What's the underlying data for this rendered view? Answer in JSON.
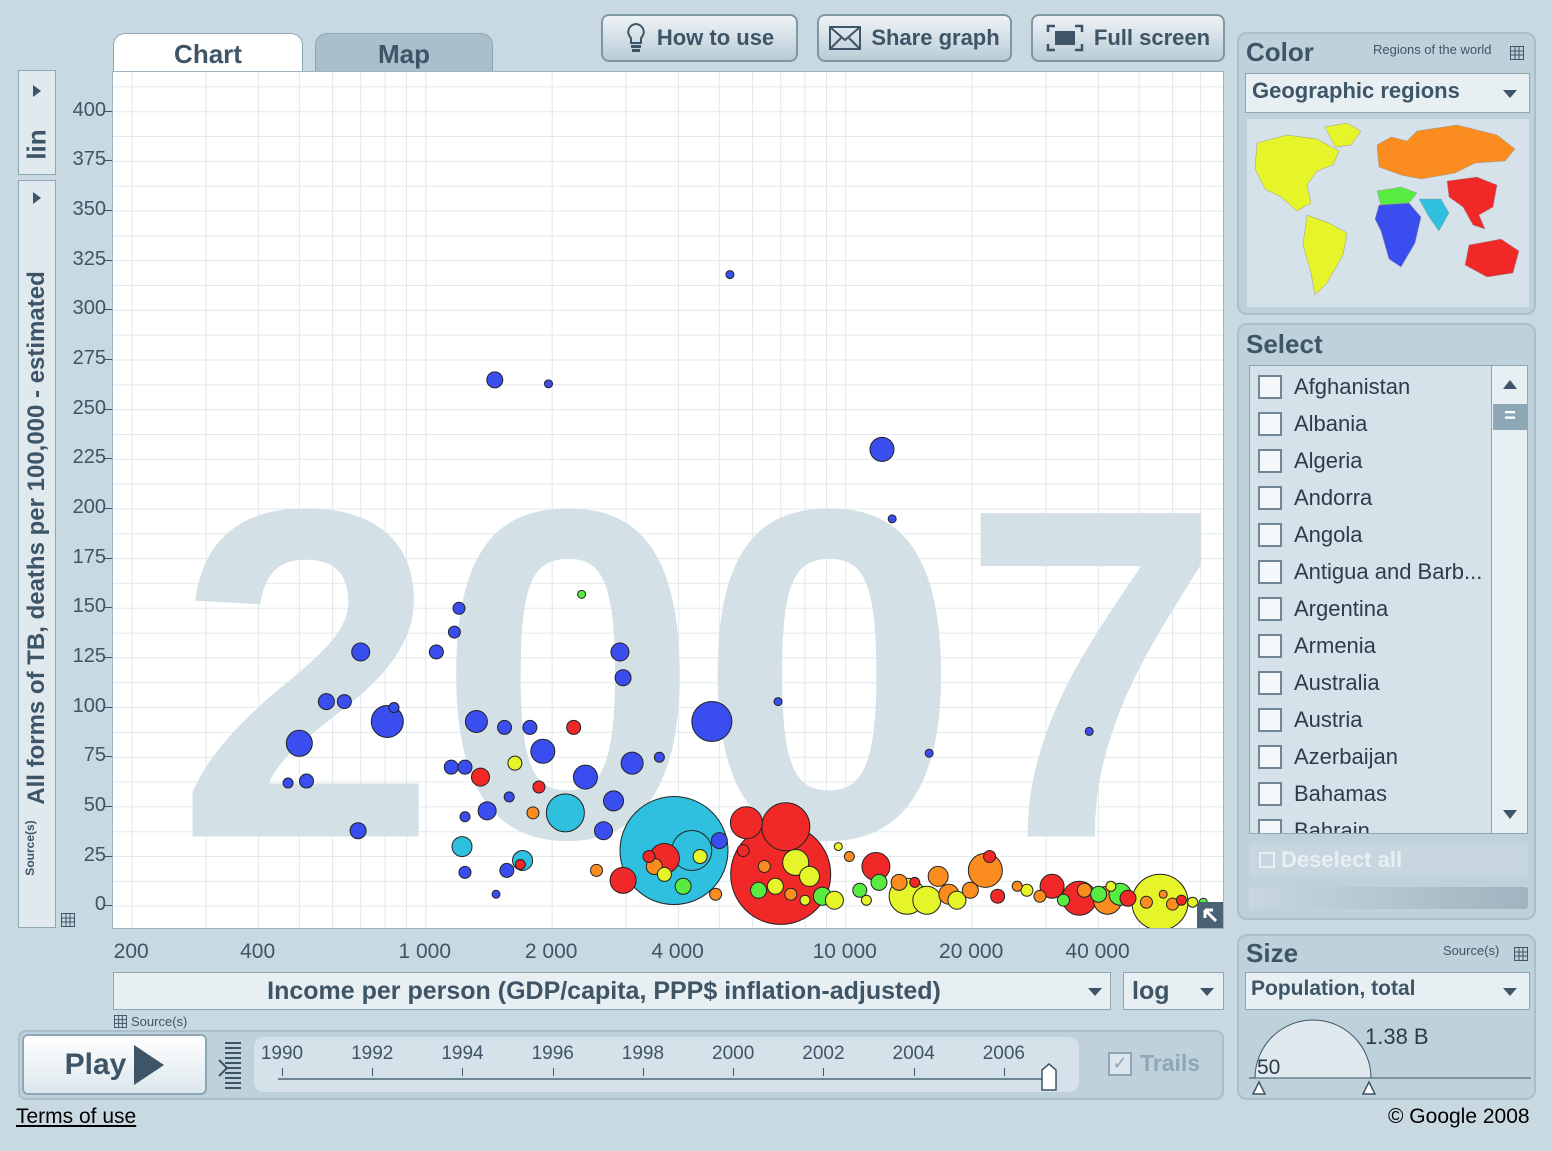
{
  "tabs": [
    {
      "label": "Chart"
    },
    {
      "label": "Map"
    }
  ],
  "toolbar": {
    "how_to_use": "How to use",
    "share_graph": "Share graph",
    "full_screen": "Full screen"
  },
  "year_label": "2007",
  "yaxis": {
    "scale": "lin",
    "label": "All forms of TB, deaths per 100,000 - estimated",
    "source": "Source(s)"
  },
  "xaxis": {
    "label": "Income per person (GDP/capita, PPP$ inflation-adjusted)",
    "scale": "log",
    "source": "Source(s)"
  },
  "color_panel": {
    "title": "Color",
    "subtitle": "Regions of the world",
    "selected": "Geographic regions"
  },
  "select_panel": {
    "title": "Select",
    "countries": [
      "Afghanistan",
      "Albania",
      "Algeria",
      "Andorra",
      "Angola",
      "Antigua and Barb...",
      "Argentina",
      "Armenia",
      "Australia",
      "Austria",
      "Azerbaijan",
      "Bahamas",
      "Bahrain"
    ],
    "deselect": "Deselect all"
  },
  "size_panel": {
    "title": "Size",
    "source": "Source(s)",
    "selected": "Population, total",
    "max_label": "1.38 B",
    "min_label": "50"
  },
  "timeline": {
    "play": "Play",
    "years": [
      "1990",
      "1992",
      "1994",
      "1996",
      "1998",
      "2000",
      "2002",
      "2004",
      "2006"
    ],
    "current_year": 2007,
    "trails": "Trails"
  },
  "footer": {
    "terms": "Terms of use",
    "copyright": "© Google 2008"
  },
  "region_colors": {
    "Sub-Saharan Africa": "#3a4ef0",
    "South Asia": "#2fc0e0",
    "East Asia & Pacific": "#f02828",
    "Middle East & North Africa": "#58ec40",
    "Europe & Central Asia": "#fa8c20",
    "America": "#e6f42a"
  },
  "chart_data": {
    "type": "scatter",
    "title": "",
    "xlabel": "Income per person (GDP/capita, PPP$ inflation-adjusted)",
    "ylabel": "All forms of TB, deaths per 100,000 - estimated",
    "xscale": "log",
    "yscale": "linear",
    "xlim": [
      180,
      80000
    ],
    "ylim": [
      -12,
      420
    ],
    "xticks": [
      {
        "v": 200,
        "label": "200"
      },
      {
        "v": 400,
        "label": "400"
      },
      {
        "v": 1000,
        "label": "1 000"
      },
      {
        "v": 2000,
        "label": "2 000"
      },
      {
        "v": 4000,
        "label": "4 000"
      },
      {
        "v": 10000,
        "label": "10 000"
      },
      {
        "v": 20000,
        "label": "20 000"
      },
      {
        "v": 40000,
        "label": "40 000"
      }
    ],
    "yticks": [
      0,
      25,
      50,
      75,
      100,
      125,
      150,
      175,
      200,
      225,
      250,
      275,
      300,
      325,
      350,
      375,
      400
    ],
    "grid": true,
    "bubbles": [
      {
        "x": 3900,
        "y": 28,
        "r": 54,
        "c": "#2fc0e0"
      },
      {
        "x": 7000,
        "y": 16,
        "r": 50,
        "c": "#f02828"
      },
      {
        "x": 7200,
        "y": 40,
        "r": 24,
        "c": "#f02828"
      },
      {
        "x": 4800,
        "y": 93,
        "r": 20,
        "c": "#3a4ef0"
      },
      {
        "x": 4300,
        "y": 28,
        "r": 20,
        "c": "#2fc0e0"
      },
      {
        "x": 2150,
        "y": 47,
        "r": 19,
        "c": "#2fc0e0"
      },
      {
        "x": 5800,
        "y": 42,
        "r": 16,
        "c": "#f02828"
      },
      {
        "x": 3700,
        "y": 24,
        "r": 15,
        "c": "#f02828"
      },
      {
        "x": 810,
        "y": 93,
        "r": 16,
        "c": "#3a4ef0"
      },
      {
        "x": 1900,
        "y": 78,
        "r": 12,
        "c": "#3a4ef0"
      },
      {
        "x": 2400,
        "y": 65,
        "r": 12,
        "c": "#3a4ef0"
      },
      {
        "x": 3100,
        "y": 72,
        "r": 11,
        "c": "#3a4ef0"
      },
      {
        "x": 12200,
        "y": 230,
        "r": 12,
        "c": "#3a4ef0"
      },
      {
        "x": 500,
        "y": 82,
        "r": 13,
        "c": "#3a4ef0"
      },
      {
        "x": 1320,
        "y": 93,
        "r": 11,
        "c": "#3a4ef0"
      },
      {
        "x": 2800,
        "y": 53,
        "r": 10,
        "c": "#3a4ef0"
      },
      {
        "x": 2650,
        "y": 38,
        "r": 9,
        "c": "#3a4ef0"
      },
      {
        "x": 1400,
        "y": 48,
        "r": 9,
        "c": "#3a4ef0"
      },
      {
        "x": 2900,
        "y": 128,
        "r": 9,
        "c": "#3a4ef0"
      },
      {
        "x": 2950,
        "y": 115,
        "r": 8,
        "c": "#3a4ef0"
      },
      {
        "x": 2950,
        "y": 13,
        "r": 13,
        "c": "#f02828"
      },
      {
        "x": 7600,
        "y": 22,
        "r": 13,
        "c": "#e6f42a"
      },
      {
        "x": 11800,
        "y": 20,
        "r": 14,
        "c": "#f02828"
      },
      {
        "x": 14000,
        "y": 5,
        "r": 18,
        "c": "#e6f42a"
      },
      {
        "x": 15600,
        "y": 3,
        "r": 14,
        "c": "#e6f42a"
      },
      {
        "x": 21500,
        "y": 18,
        "r": 17,
        "c": "#fa8c20"
      },
      {
        "x": 31000,
        "y": 10,
        "r": 12,
        "c": "#f02828"
      },
      {
        "x": 36000,
        "y": 4,
        "r": 17,
        "c": "#f02828"
      },
      {
        "x": 42000,
        "y": 3,
        "r": 14,
        "c": "#fa8c20"
      },
      {
        "x": 56000,
        "y": 2,
        "r": 28,
        "c": "#e6f42a"
      },
      {
        "x": 45000,
        "y": 6,
        "r": 11,
        "c": "#58ec40"
      },
      {
        "x": 1700,
        "y": 23,
        "r": 10,
        "c": "#2fc0e0"
      },
      {
        "x": 1220,
        "y": 30,
        "r": 10,
        "c": "#2fc0e0"
      },
      {
        "x": 700,
        "y": 128,
        "r": 9,
        "c": "#3a4ef0"
      },
      {
        "x": 580,
        "y": 103,
        "r": 8,
        "c": "#3a4ef0"
      },
      {
        "x": 640,
        "y": 103,
        "r": 7,
        "c": "#3a4ef0"
      },
      {
        "x": 1460,
        "y": 265,
        "r": 8,
        "c": "#3a4ef0"
      },
      {
        "x": 1770,
        "y": 90,
        "r": 7,
        "c": "#3a4ef0"
      },
      {
        "x": 1540,
        "y": 90,
        "r": 7,
        "c": "#3a4ef0"
      },
      {
        "x": 1060,
        "y": 128,
        "r": 7,
        "c": "#3a4ef0"
      },
      {
        "x": 1170,
        "y": 138,
        "r": 6,
        "c": "#3a4ef0"
      },
      {
        "x": 1200,
        "y": 150,
        "r": 6,
        "c": "#3a4ef0"
      },
      {
        "x": 1150,
        "y": 70,
        "r": 7,
        "c": "#3a4ef0"
      },
      {
        "x": 1240,
        "y": 70,
        "r": 7,
        "c": "#3a4ef0"
      },
      {
        "x": 1350,
        "y": 65,
        "r": 9,
        "c": "#f02828"
      },
      {
        "x": 690,
        "y": 38,
        "r": 8,
        "c": "#3a4ef0"
      },
      {
        "x": 520,
        "y": 63,
        "r": 7,
        "c": "#3a4ef0"
      },
      {
        "x": 470,
        "y": 62,
        "r": 5,
        "c": "#3a4ef0"
      },
      {
        "x": 2250,
        "y": 90,
        "r": 7,
        "c": "#f02828"
      },
      {
        "x": 3600,
        "y": 75,
        "r": 5,
        "c": "#3a4ef0"
      },
      {
        "x": 5300,
        "y": 318,
        "r": 4,
        "c": "#3a4ef0"
      },
      {
        "x": 1960,
        "y": 263,
        "r": 4,
        "c": "#3a4ef0"
      },
      {
        "x": 12900,
        "y": 195,
        "r": 4,
        "c": "#3a4ef0"
      },
      {
        "x": 6900,
        "y": 103,
        "r": 4,
        "c": "#3a4ef0"
      },
      {
        "x": 15800,
        "y": 77,
        "r": 4,
        "c": "#3a4ef0"
      },
      {
        "x": 38000,
        "y": 88,
        "r": 4,
        "c": "#3a4ef0"
      },
      {
        "x": 2350,
        "y": 157,
        "r": 4,
        "c": "#58ec40"
      },
      {
        "x": 840,
        "y": 100,
        "r": 5,
        "c": "#3a4ef0"
      },
      {
        "x": 1630,
        "y": 72,
        "r": 7,
        "c": "#e6f42a"
      },
      {
        "x": 1860,
        "y": 60,
        "r": 6,
        "c": "#f02828"
      },
      {
        "x": 1800,
        "y": 47,
        "r": 6,
        "c": "#fa8c20"
      },
      {
        "x": 1580,
        "y": 55,
        "r": 5,
        "c": "#3a4ef0"
      },
      {
        "x": 1240,
        "y": 45,
        "r": 5,
        "c": "#3a4ef0"
      },
      {
        "x": 1240,
        "y": 17,
        "r": 6,
        "c": "#3a4ef0"
      },
      {
        "x": 1560,
        "y": 18,
        "r": 7,
        "c": "#3a4ef0"
      },
      {
        "x": 1680,
        "y": 21,
        "r": 5,
        "c": "#f02828"
      },
      {
        "x": 1470,
        "y": 6,
        "r": 4,
        "c": "#3a4ef0"
      },
      {
        "x": 5000,
        "y": 33,
        "r": 8,
        "c": "#3a4ef0"
      },
      {
        "x": 3500,
        "y": 20,
        "r": 8,
        "c": "#fa8c20"
      },
      {
        "x": 3700,
        "y": 16,
        "r": 7,
        "c": "#e6f42a"
      },
      {
        "x": 2550,
        "y": 18,
        "r": 6,
        "c": "#fa8c20"
      },
      {
        "x": 4100,
        "y": 10,
        "r": 8,
        "c": "#58ec40"
      },
      {
        "x": 4500,
        "y": 25,
        "r": 7,
        "c": "#e6f42a"
      },
      {
        "x": 3400,
        "y": 25,
        "r": 6,
        "c": "#f02828"
      },
      {
        "x": 4900,
        "y": 6,
        "r": 6,
        "c": "#fa8c20"
      },
      {
        "x": 6200,
        "y": 8,
        "r": 8,
        "c": "#58ec40"
      },
      {
        "x": 6800,
        "y": 10,
        "r": 8,
        "c": "#e6f42a"
      },
      {
        "x": 8200,
        "y": 15,
        "r": 10,
        "c": "#e6f42a"
      },
      {
        "x": 8800,
        "y": 5,
        "r": 9,
        "c": "#58ec40"
      },
      {
        "x": 9400,
        "y": 3,
        "r": 9,
        "c": "#e6f42a"
      },
      {
        "x": 10800,
        "y": 8,
        "r": 7,
        "c": "#58ec40"
      },
      {
        "x": 12000,
        "y": 12,
        "r": 8,
        "c": "#58ec40"
      },
      {
        "x": 13400,
        "y": 12,
        "r": 8,
        "c": "#fa8c20"
      },
      {
        "x": 16600,
        "y": 15,
        "r": 10,
        "c": "#fa8c20"
      },
      {
        "x": 17600,
        "y": 6,
        "r": 10,
        "c": "#fa8c20"
      },
      {
        "x": 18400,
        "y": 3,
        "r": 9,
        "c": "#e6f42a"
      },
      {
        "x": 19800,
        "y": 8,
        "r": 8,
        "c": "#fa8c20"
      },
      {
        "x": 23000,
        "y": 5,
        "r": 7,
        "c": "#f02828"
      },
      {
        "x": 27000,
        "y": 8,
        "r": 6,
        "c": "#e6f42a"
      },
      {
        "x": 29000,
        "y": 5,
        "r": 6,
        "c": "#fa8c20"
      },
      {
        "x": 33000,
        "y": 3,
        "r": 6,
        "c": "#58ec40"
      },
      {
        "x": 37000,
        "y": 8,
        "r": 7,
        "c": "#fa8c20"
      },
      {
        "x": 40000,
        "y": 6,
        "r": 8,
        "c": "#58ec40"
      },
      {
        "x": 47000,
        "y": 4,
        "r": 8,
        "c": "#f02828"
      },
      {
        "x": 52000,
        "y": 2,
        "r": 6,
        "c": "#fa8c20"
      },
      {
        "x": 60000,
        "y": 1,
        "r": 6,
        "c": "#fa8c20"
      },
      {
        "x": 63000,
        "y": 3,
        "r": 5,
        "c": "#f02828"
      },
      {
        "x": 67000,
        "y": 2,
        "r": 5,
        "c": "#e6f42a"
      },
      {
        "x": 71000,
        "y": 2,
        "r": 4,
        "c": "#58ec40"
      },
      {
        "x": 10200,
        "y": 25,
        "r": 5,
        "c": "#fa8c20"
      },
      {
        "x": 9600,
        "y": 30,
        "r": 4,
        "c": "#e6f42a"
      },
      {
        "x": 5700,
        "y": 28,
        "r": 6,
        "c": "#f02828"
      },
      {
        "x": 6400,
        "y": 20,
        "r": 6,
        "c": "#fa8c20"
      },
      {
        "x": 7400,
        "y": 6,
        "r": 6,
        "c": "#fa8c20"
      },
      {
        "x": 8000,
        "y": 3,
        "r": 5,
        "c": "#e6f42a"
      },
      {
        "x": 11200,
        "y": 3,
        "r": 5,
        "c": "#e6f42a"
      },
      {
        "x": 14600,
        "y": 12,
        "r": 5,
        "c": "#f02828"
      },
      {
        "x": 25600,
        "y": 10,
        "r": 5,
        "c": "#fa8c20"
      },
      {
        "x": 22000,
        "y": 25,
        "r": 6,
        "c": "#f02828"
      },
      {
        "x": 42800,
        "y": 10,
        "r": 5,
        "c": "#e6f42a"
      },
      {
        "x": 57000,
        "y": 6,
        "r": 4,
        "c": "#fa8c20"
      }
    ]
  }
}
